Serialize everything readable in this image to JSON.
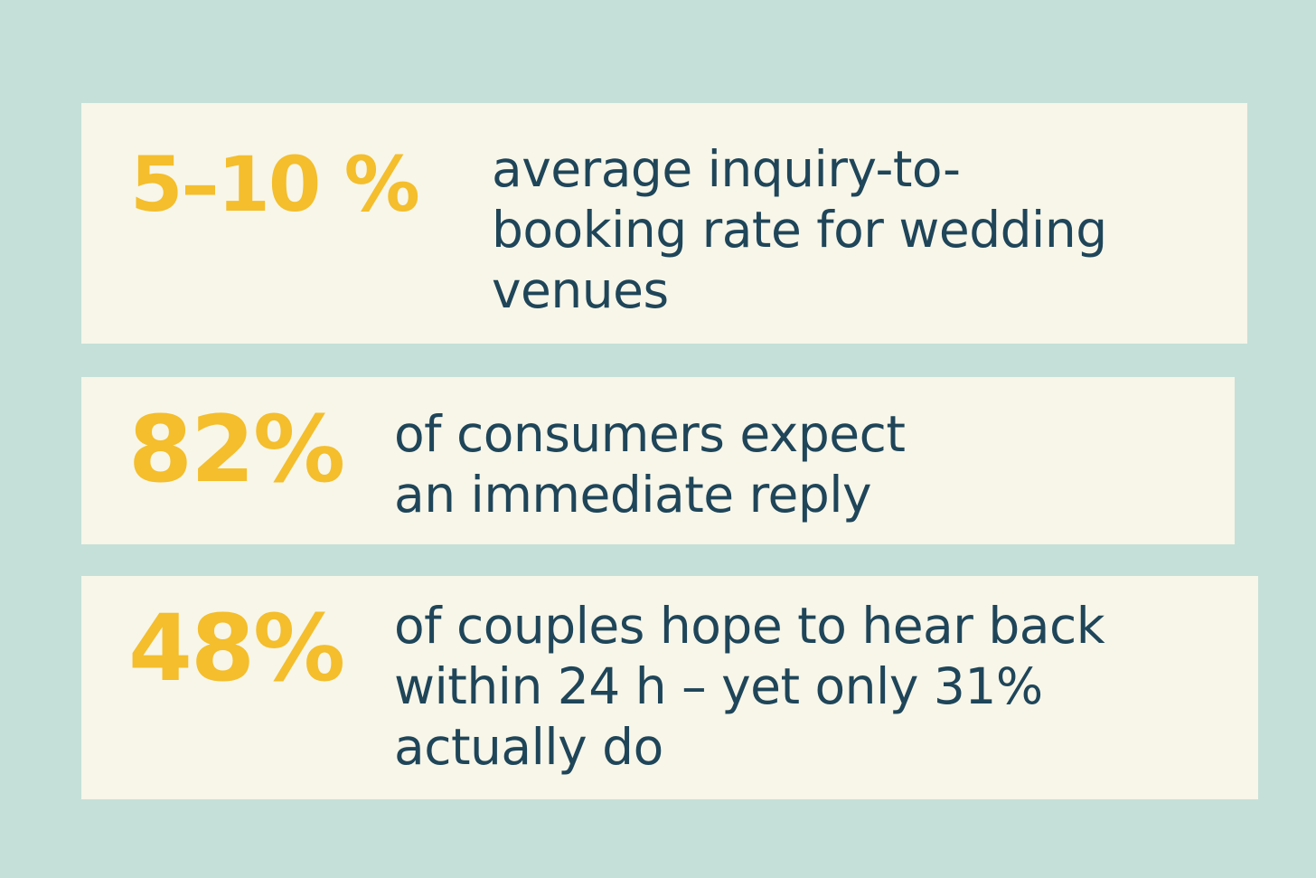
{
  "colors": {
    "background": "#c5e0d8",
    "card": "#f7f6e9",
    "stat": "#f4be2c",
    "text": "#1f4559"
  },
  "stats": [
    {
      "value": "5–10 %",
      "lines": [
        "average inquiry-to-",
        "booking rate for wedding",
        "venues"
      ]
    },
    {
      "value": "82%",
      "lines": [
        "of consumers expect",
        "an immediate reply"
      ]
    },
    {
      "value": "48%",
      "lines": [
        "of couples hope to hear back",
        "within 24 h – yet only 31%",
        "actually do"
      ]
    }
  ]
}
